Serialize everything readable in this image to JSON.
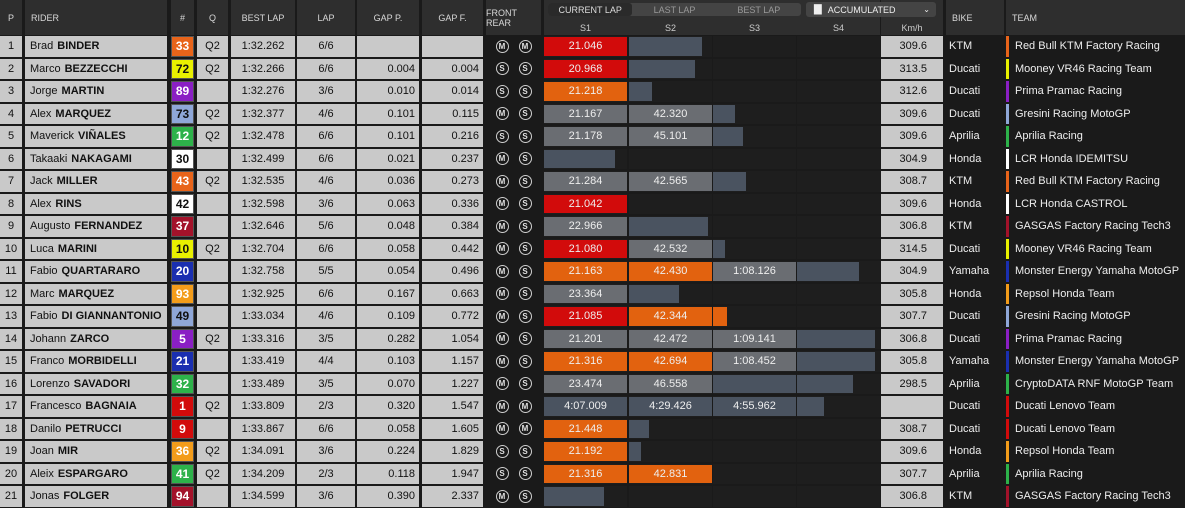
{
  "headers": {
    "p": "P",
    "rider": "RIDER",
    "num": "#",
    "q": "Q",
    "best_lap": "BEST LAP",
    "lap": "LAP",
    "gap_p": "GAP P.",
    "gap_f": "GAP F.",
    "front_rear": "FRONT REAR",
    "s1": "S1",
    "s2": "S2",
    "s3": "S3",
    "s4": "S4",
    "speed": "Km/h",
    "bike": "BIKE",
    "team": "TEAM"
  },
  "tabs": [
    "CURRENT LAP",
    "LAST LAP",
    "BEST LAP"
  ],
  "active_tab": 0,
  "accumulated": {
    "icon": "bar-chart-icon",
    "label": "ACCUMULATED"
  },
  "sector_bar_scale_max": 100,
  "rows": [
    {
      "p": "1",
      "first": "Brad",
      "last": "BINDER",
      "num": "33",
      "num_bg": "#e8641a",
      "num_fg": "#ffffff",
      "q": "Q2",
      "best": "1:32.262",
      "lap": "6/6",
      "gapp": "",
      "gapf": "",
      "front": "M",
      "rear": "M",
      "s1": {
        "t": "21.046",
        "c": "red",
        "f": 100
      },
      "s2": {
        "t": "",
        "c": "dark",
        "f": 88
      },
      "s3": null,
      "s4": null,
      "speed": "309.6",
      "bike": "KTM",
      "team": "Red Bull KTM Factory Racing",
      "team_color": "#e8641a"
    },
    {
      "p": "2",
      "first": "Marco",
      "last": "BEZZECCHI",
      "num": "72",
      "num_bg": "#e8f000",
      "num_fg": "#111111",
      "q": "Q2",
      "best": "1:32.266",
      "lap": "6/6",
      "gapp": "0.004",
      "gapf": "0.004",
      "front": "S",
      "rear": "S",
      "s1": {
        "t": "20.968",
        "c": "red",
        "f": 100
      },
      "s2": {
        "t": "",
        "c": "dark",
        "f": 80
      },
      "s3": null,
      "s4": null,
      "speed": "313.5",
      "bike": "Ducati",
      "team": "Mooney VR46 Racing Team",
      "team_color": "#e8f000"
    },
    {
      "p": "3",
      "first": "Jorge",
      "last": "MARTIN",
      "num": "89",
      "num_bg": "#8a1fc4",
      "num_fg": "#ffffff",
      "q": "",
      "best": "1:32.276",
      "lap": "3/6",
      "gapp": "0.010",
      "gapf": "0.014",
      "front": "S",
      "rear": "S",
      "s1": {
        "t": "21.218",
        "c": "orange",
        "f": 100
      },
      "s2": {
        "t": "",
        "c": "dark",
        "f": 28
      },
      "s3": null,
      "s4": null,
      "speed": "312.6",
      "bike": "Ducati",
      "team": "Prima Pramac Racing",
      "team_color": "#8a1fc4"
    },
    {
      "p": "4",
      "first": "Alex",
      "last": "MARQUEZ",
      "num": "73",
      "num_bg": "#8fa7d8",
      "num_fg": "#111111",
      "q": "Q2",
      "best": "1:32.377",
      "lap": "4/6",
      "gapp": "0.101",
      "gapf": "0.115",
      "front": "M",
      "rear": "S",
      "s1": {
        "t": "21.167",
        "c": "grey",
        "f": 100
      },
      "s2": {
        "t": "42.320",
        "c": "grey",
        "f": 100
      },
      "s3": {
        "t": "",
        "c": "dark",
        "f": 26
      },
      "s4": null,
      "speed": "309.6",
      "bike": "Ducati",
      "team": "Gresini Racing MotoGP",
      "team_color": "#8fa7d8"
    },
    {
      "p": "5",
      "first": "Maverick",
      "last": "VIÑALES",
      "num": "12",
      "num_bg": "#2db24a",
      "num_fg": "#ffffff",
      "q": "Q2",
      "best": "1:32.478",
      "lap": "6/6",
      "gapp": "0.101",
      "gapf": "0.216",
      "front": "S",
      "rear": "S",
      "s1": {
        "t": "21.178",
        "c": "grey",
        "f": 100
      },
      "s2": {
        "t": "45.101",
        "c": "grey",
        "f": 100
      },
      "s3": {
        "t": "",
        "c": "dark",
        "f": 36
      },
      "s4": null,
      "speed": "309.6",
      "bike": "Aprilia",
      "team": "Aprilia Racing",
      "team_color": "#2db24a"
    },
    {
      "p": "6",
      "first": "Takaaki",
      "last": "NAKAGAMI",
      "num": "30",
      "num_bg": "#ffffff",
      "num_fg": "#111111",
      "q": "",
      "best": "1:32.499",
      "lap": "6/6",
      "gapp": "0.021",
      "gapf": "0.237",
      "front": "M",
      "rear": "S",
      "s1": {
        "t": "",
        "c": "dark",
        "f": 85
      },
      "s2": null,
      "s3": null,
      "s4": null,
      "speed": "304.9",
      "bike": "Honda",
      "team": "LCR Honda IDEMITSU",
      "team_color": "#ffffff"
    },
    {
      "p": "7",
      "first": "Jack",
      "last": "MILLER",
      "num": "43",
      "num_bg": "#e8641a",
      "num_fg": "#ffffff",
      "q": "Q2",
      "best": "1:32.535",
      "lap": "4/6",
      "gapp": "0.036",
      "gapf": "0.273",
      "front": "M",
      "rear": "S",
      "s1": {
        "t": "21.284",
        "c": "grey",
        "f": 100
      },
      "s2": {
        "t": "42.565",
        "c": "grey",
        "f": 100
      },
      "s3": {
        "t": "",
        "c": "dark",
        "f": 40
      },
      "s4": null,
      "speed": "308.7",
      "bike": "KTM",
      "team": "Red Bull KTM Factory Racing",
      "team_color": "#e8641a"
    },
    {
      "p": "8",
      "first": "Alex",
      "last": "RINS",
      "num": "42",
      "num_bg": "#ffffff",
      "num_fg": "#111111",
      "q": "",
      "best": "1:32.598",
      "lap": "3/6",
      "gapp": "0.063",
      "gapf": "0.336",
      "front": "M",
      "rear": "S",
      "s1": {
        "t": "21.042",
        "c": "red",
        "f": 100
      },
      "s2": null,
      "s3": null,
      "s4": null,
      "speed": "309.6",
      "bike": "Honda",
      "team": "LCR Honda CASTROL",
      "team_color": "#ffffff"
    },
    {
      "p": "9",
      "first": "Augusto",
      "last": "FERNANDEZ",
      "num": "37",
      "num_bg": "#a3122a",
      "num_fg": "#ffffff",
      "q": "",
      "best": "1:32.646",
      "lap": "5/6",
      "gapp": "0.048",
      "gapf": "0.384",
      "front": "M",
      "rear": "S",
      "s1": {
        "t": "22.966",
        "c": "grey",
        "f": 100
      },
      "s2": {
        "t": "",
        "c": "dark",
        "f": 95
      },
      "s3": null,
      "s4": null,
      "speed": "306.8",
      "bike": "KTM",
      "team": "GASGAS Factory Racing Tech3",
      "team_color": "#a3122a"
    },
    {
      "p": "10",
      "first": "Luca",
      "last": "MARINI",
      "num": "10",
      "num_bg": "#e8f000",
      "num_fg": "#111111",
      "q": "Q2",
      "best": "1:32.704",
      "lap": "6/6",
      "gapp": "0.058",
      "gapf": "0.442",
      "front": "M",
      "rear": "S",
      "s1": {
        "t": "21.080",
        "c": "red",
        "f": 100
      },
      "s2": {
        "t": "42.532",
        "c": "grey",
        "f": 100
      },
      "s3": {
        "t": "",
        "c": "dark",
        "f": 14
      },
      "s4": null,
      "speed": "314.5",
      "bike": "Ducati",
      "team": "Mooney VR46 Racing Team",
      "team_color": "#e8f000"
    },
    {
      "p": "11",
      "first": "Fabio",
      "last": "QUARTARARO",
      "num": "20",
      "num_bg": "#1a2fb0",
      "num_fg": "#ffffff",
      "q": "",
      "best": "1:32.758",
      "lap": "5/5",
      "gapp": "0.054",
      "gapf": "0.496",
      "front": "M",
      "rear": "S",
      "s1": {
        "t": "21.163",
        "c": "orange",
        "f": 100
      },
      "s2": {
        "t": "42.430",
        "c": "orange",
        "f": 100
      },
      "s3": {
        "t": "1:08.126",
        "c": "grey",
        "f": 100
      },
      "s4": {
        "t": "",
        "c": "dark",
        "f": 75
      },
      "speed": "304.9",
      "bike": "Yamaha",
      "team": "Monster Energy Yamaha MotoGP",
      "team_color": "#1a2fb0"
    },
    {
      "p": "12",
      "first": "Marc",
      "last": "MARQUEZ",
      "num": "93",
      "num_bg": "#f39c1a",
      "num_fg": "#ffffff",
      "q": "",
      "best": "1:32.925",
      "lap": "6/6",
      "gapp": "0.167",
      "gapf": "0.663",
      "front": "M",
      "rear": "S",
      "s1": {
        "t": "23.364",
        "c": "grey",
        "f": 100
      },
      "s2": {
        "t": "",
        "c": "dark",
        "f": 60
      },
      "s3": null,
      "s4": null,
      "speed": "305.8",
      "bike": "Honda",
      "team": "Repsol Honda Team",
      "team_color": "#f39c1a"
    },
    {
      "p": "13",
      "first": "Fabio",
      "last": "DI GIANNANTONIO",
      "num": "49",
      "num_bg": "#8fa7d8",
      "num_fg": "#111111",
      "q": "",
      "best": "1:33.034",
      "lap": "4/6",
      "gapp": "0.109",
      "gapf": "0.772",
      "front": "M",
      "rear": "S",
      "s1": {
        "t": "21.085",
        "c": "red",
        "f": 100
      },
      "s2": {
        "t": "42.344",
        "c": "orange",
        "f": 100
      },
      "s3": {
        "t": "",
        "c": "orange",
        "f": 17
      },
      "s4": null,
      "speed": "307.7",
      "bike": "Ducati",
      "team": "Gresini Racing MotoGP",
      "team_color": "#8fa7d8"
    },
    {
      "p": "14",
      "first": "Johann",
      "last": "ZARCO",
      "num": "5",
      "num_bg": "#8a1fc4",
      "num_fg": "#ffffff",
      "q": "Q2",
      "best": "1:33.316",
      "lap": "3/5",
      "gapp": "0.282",
      "gapf": "1.054",
      "front": "M",
      "rear": "S",
      "s1": {
        "t": "21.201",
        "c": "grey",
        "f": 100
      },
      "s2": {
        "t": "42.472",
        "c": "grey",
        "f": 100
      },
      "s3": {
        "t": "1:09.141",
        "c": "grey",
        "f": 100
      },
      "s4": {
        "t": "",
        "c": "dark",
        "f": 94
      },
      "speed": "306.8",
      "bike": "Ducati",
      "team": "Prima Pramac Racing",
      "team_color": "#8a1fc4"
    },
    {
      "p": "15",
      "first": "Franco",
      "last": "MORBIDELLI",
      "num": "21",
      "num_bg": "#1a2fb0",
      "num_fg": "#ffffff",
      "q": "",
      "best": "1:33.419",
      "lap": "4/4",
      "gapp": "0.103",
      "gapf": "1.157",
      "front": "M",
      "rear": "S",
      "s1": {
        "t": "21.316",
        "c": "orange",
        "f": 100
      },
      "s2": {
        "t": "42.694",
        "c": "orange",
        "f": 100
      },
      "s3": {
        "t": "1:08.452",
        "c": "grey",
        "f": 100
      },
      "s4": {
        "t": "",
        "c": "dark",
        "f": 94
      },
      "speed": "305.8",
      "bike": "Yamaha",
      "team": "Monster Energy Yamaha MotoGP",
      "team_color": "#1a2fb0"
    },
    {
      "p": "16",
      "first": "Lorenzo",
      "last": "SAVADORI",
      "num": "32",
      "num_bg": "#2db24a",
      "num_fg": "#ffffff",
      "q": "",
      "best": "1:33.489",
      "lap": "3/5",
      "gapp": "0.070",
      "gapf": "1.227",
      "front": "M",
      "rear": "S",
      "s1": {
        "t": "23.474",
        "c": "grey",
        "f": 100
      },
      "s2": {
        "t": "46.558",
        "c": "grey",
        "f": 100
      },
      "s3": {
        "t": "",
        "c": "dark",
        "f": 100
      },
      "s4": {
        "t": "",
        "c": "dark",
        "f": 68
      },
      "speed": "298.5",
      "bike": "Aprilia",
      "team": "CryptoDATA RNF MotoGP Team",
      "team_color": "#2db24a"
    },
    {
      "p": "17",
      "first": "Francesco",
      "last": "BAGNAIA",
      "num": "1",
      "num_bg": "#d20b0b",
      "num_fg": "#ffffff",
      "q": "Q2",
      "best": "1:33.809",
      "lap": "2/3",
      "gapp": "0.320",
      "gapf": "1.547",
      "front": "M",
      "rear": "M",
      "s1": {
        "t": "4:07.009",
        "c": "dark",
        "f": 100
      },
      "s2": {
        "t": "4:29.426",
        "c": "dark",
        "f": 100
      },
      "s3": {
        "t": "4:55.962",
        "c": "dark",
        "f": 100
      },
      "s4": {
        "t": "",
        "c": "dark",
        "f": 32
      },
      "speed": "",
      "bike": "Ducati",
      "team": "Ducati Lenovo Team",
      "team_color": "#d20b0b"
    },
    {
      "p": "18",
      "first": "Danilo",
      "last": "PETRUCCI",
      "num": "9",
      "num_bg": "#d20b0b",
      "num_fg": "#ffffff",
      "q": "",
      "best": "1:33.867",
      "lap": "6/6",
      "gapp": "0.058",
      "gapf": "1.605",
      "front": "M",
      "rear": "M",
      "s1": {
        "t": "21.448",
        "c": "orange",
        "f": 100
      },
      "s2": {
        "t": "",
        "c": "dark",
        "f": 24
      },
      "s3": null,
      "s4": null,
      "speed": "308.7",
      "bike": "Ducati",
      "team": "Ducati Lenovo Team",
      "team_color": "#d20b0b"
    },
    {
      "p": "19",
      "first": "Joan",
      "last": "MIR",
      "num": "36",
      "num_bg": "#f39c1a",
      "num_fg": "#ffffff",
      "q": "Q2",
      "best": "1:34.091",
      "lap": "3/6",
      "gapp": "0.224",
      "gapf": "1.829",
      "front": "S",
      "rear": "S",
      "s1": {
        "t": "21.192",
        "c": "orange",
        "f": 100
      },
      "s2": {
        "t": "",
        "c": "dark",
        "f": 14
      },
      "s3": null,
      "s4": null,
      "speed": "309.6",
      "bike": "Honda",
      "team": "Repsol Honda Team",
      "team_color": "#f39c1a"
    },
    {
      "p": "20",
      "first": "Aleix",
      "last": "ESPARGARO",
      "num": "41",
      "num_bg": "#2db24a",
      "num_fg": "#ffffff",
      "q": "Q2",
      "best": "1:34.209",
      "lap": "2/3",
      "gapp": "0.118",
      "gapf": "1.947",
      "front": "S",
      "rear": "S",
      "s1": {
        "t": "21.316",
        "c": "orange",
        "f": 100
      },
      "s2": {
        "t": "42.831",
        "c": "orange",
        "f": 100
      },
      "s3": null,
      "s4": null,
      "speed": "307.7",
      "bike": "Aprilia",
      "team": "Aprilia Racing",
      "team_color": "#2db24a"
    },
    {
      "p": "21",
      "first": "Jonas",
      "last": "FOLGER",
      "num": "94",
      "num_bg": "#a3122a",
      "num_fg": "#ffffff",
      "q": "",
      "best": "1:34.599",
      "lap": "3/6",
      "gapp": "0.390",
      "gapf": "2.337",
      "front": "M",
      "rear": "S",
      "s1": {
        "t": "",
        "c": "dark",
        "f": 72
      },
      "s2": null,
      "s3": null,
      "s4": null,
      "speed": "306.8",
      "bike": "KTM",
      "team": "GASGAS Factory Racing Tech3",
      "team_color": "#a3122a"
    }
  ]
}
